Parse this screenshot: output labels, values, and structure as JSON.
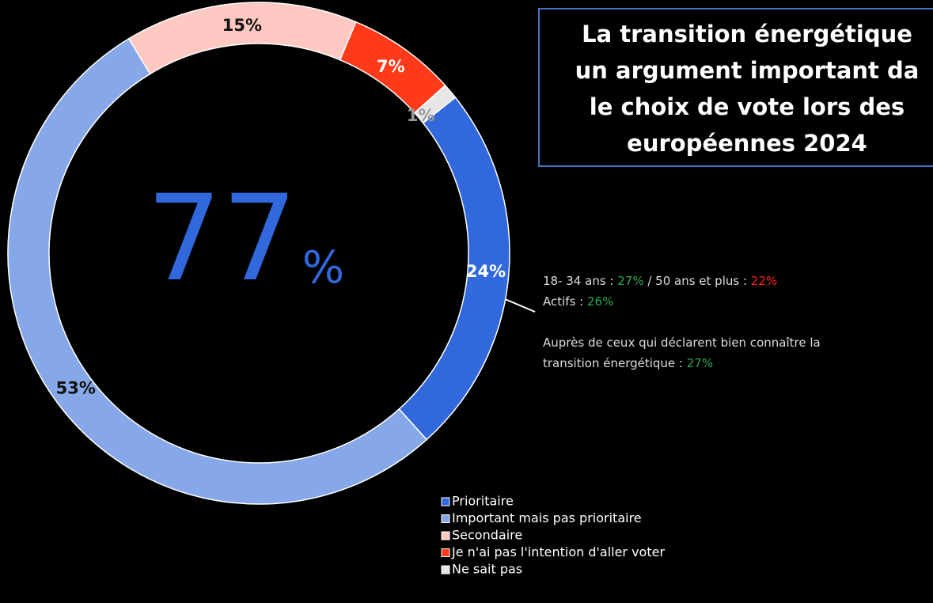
{
  "chart_data": {
    "type": "pie",
    "title_lines": [
      "La transition énergétique",
      "un argument important da",
      "le choix de vote lors des",
      "européennes 2024"
    ],
    "center_value": 77,
    "center_unit": "%",
    "categories": [
      "Prioritaire",
      "Important mais pas prioritaire",
      "Secondaire",
      "Je n'ai pas l'intention d'aller voter",
      "Ne sait pas"
    ],
    "values": [
      24,
      53,
      15,
      7,
      1
    ],
    "value_labels": [
      "24%",
      "53%",
      "15%",
      "7%",
      "1%"
    ],
    "colors": [
      "#3168dc",
      "#86a8e8",
      "#ffc9c1",
      "#ff3a1a",
      "#e6e6e6"
    ],
    "annotations": [
      [
        {
          "text": "18- 34 ans : ",
          "color": "#dddddd"
        },
        {
          "text": "27%",
          "color": "#2eaa4a"
        },
        {
          "text": " / 50 ans et plus : ",
          "color": "#dddddd"
        },
        {
          "text": "22%",
          "color": "#ff2020"
        }
      ],
      [
        {
          "text": "Actifs : ",
          "color": "#dddddd"
        },
        {
          "text": "26%",
          "color": "#2eaa4a"
        }
      ],
      [
        {
          "text": "Auprès de ceux qui déclarent bien connaître la",
          "color": "#dddddd"
        }
      ],
      [
        {
          "text": "transition énergétique : ",
          "color": "#dddddd"
        },
        {
          "text": "27%",
          "color": "#2eaa4a"
        }
      ]
    ]
  }
}
